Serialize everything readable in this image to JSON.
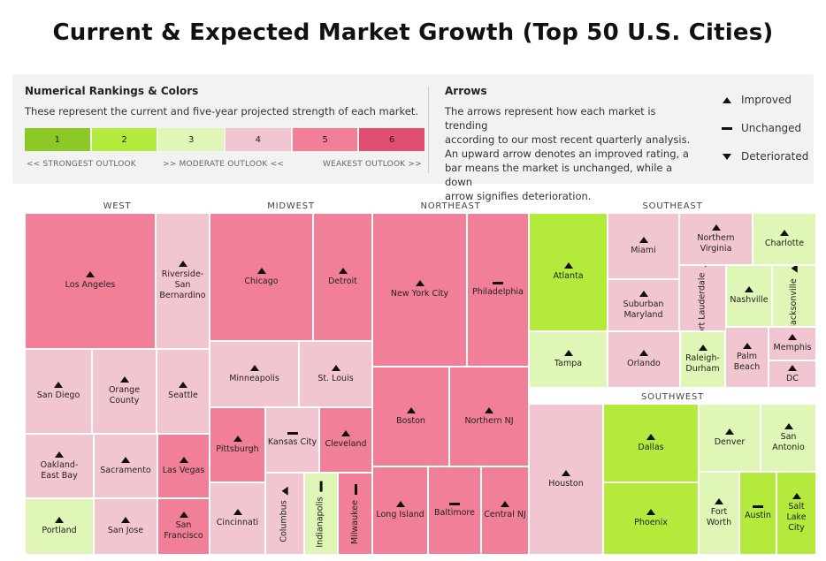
{
  "title": "Current & Expected Market Growth (Top 50 U.S. Cities)",
  "legend": {
    "rank_title": "Numerical Rankings & Colors",
    "rank_desc": "These represent the current and five-year projected strength of each market.",
    "ranks": [
      {
        "label": "1",
        "color": "#8cc826"
      },
      {
        "label": "2",
        "color": "#b3ea3c"
      },
      {
        "label": "3",
        "color": "#dff6b6"
      },
      {
        "label": "4",
        "color": "#f2c6d0"
      },
      {
        "label": "5",
        "color": "#f17f98"
      },
      {
        "label": "6",
        "color": "#e04e70"
      }
    ],
    "scale_strong": "<< STRONGEST OUTLOOK",
    "scale_moderate": ">> MODERATE OUTLOOK <<",
    "scale_weak": "WEAKEST OUTLOOK >>",
    "arrows_title": "Arrows",
    "arrows_desc": [
      "The arrows represent how each market is trending",
      "according to our most recent quarterly analysis.",
      "An upward arrow denotes an improved rating, a",
      "bar means the market is unchanged, while a down",
      "arrow signifies deterioration."
    ],
    "key_improved": "Improved",
    "key_unchanged": "Unchanged",
    "key_deteriorated": "Deteriorated"
  },
  "chart_data": {
    "type": "treemap",
    "regions": [
      "WEST",
      "MIDWEST",
      "NORTHEAST",
      "SOUTHEAST",
      "SOUTHWEST"
    ],
    "markets": [
      {
        "city": "Los Angeles",
        "region": "WEST",
        "rank": 5,
        "trend": "improved"
      },
      {
        "city": "Riverside-San Bernardino",
        "region": "WEST",
        "rank": 4,
        "trend": "improved"
      },
      {
        "city": "San Diego",
        "region": "WEST",
        "rank": 4,
        "trend": "improved"
      },
      {
        "city": "Orange County",
        "region": "WEST",
        "rank": 4,
        "trend": "improved"
      },
      {
        "city": "Seattle",
        "region": "WEST",
        "rank": 4,
        "trend": "improved"
      },
      {
        "city": "Oakland-East Bay",
        "region": "WEST",
        "rank": 4,
        "trend": "improved"
      },
      {
        "city": "Sacramento",
        "region": "WEST",
        "rank": 4,
        "trend": "improved"
      },
      {
        "city": "Las Vegas",
        "region": "WEST",
        "rank": 5,
        "trend": "improved"
      },
      {
        "city": "Portland",
        "region": "WEST",
        "rank": 3,
        "trend": "improved"
      },
      {
        "city": "San Jose",
        "region": "WEST",
        "rank": 4,
        "trend": "improved"
      },
      {
        "city": "San Francisco",
        "region": "WEST",
        "rank": 5,
        "trend": "improved"
      },
      {
        "city": "Chicago",
        "region": "MIDWEST",
        "rank": 5,
        "trend": "improved"
      },
      {
        "city": "Detroit",
        "region": "MIDWEST",
        "rank": 5,
        "trend": "improved"
      },
      {
        "city": "Minneapolis",
        "region": "MIDWEST",
        "rank": 4,
        "trend": "improved"
      },
      {
        "city": "St. Louis",
        "region": "MIDWEST",
        "rank": 4,
        "trend": "improved"
      },
      {
        "city": "Pittsburgh",
        "region": "MIDWEST",
        "rank": 5,
        "trend": "improved"
      },
      {
        "city": "Kansas City",
        "region": "MIDWEST",
        "rank": 4,
        "trend": "unchanged"
      },
      {
        "city": "Cleveland",
        "region": "MIDWEST",
        "rank": 5,
        "trend": "improved"
      },
      {
        "city": "Cincinnati",
        "region": "MIDWEST",
        "rank": 4,
        "trend": "improved"
      },
      {
        "city": "Columbus",
        "region": "MIDWEST",
        "rank": 4,
        "trend": "improved"
      },
      {
        "city": "Indianapolis",
        "region": "MIDWEST",
        "rank": 3,
        "trend": "unchanged"
      },
      {
        "city": "Milwaukee",
        "region": "MIDWEST",
        "rank": 5,
        "trend": "unchanged"
      },
      {
        "city": "New York City",
        "region": "NORTHEAST",
        "rank": 5,
        "trend": "improved"
      },
      {
        "city": "Philadelphia",
        "region": "NORTHEAST",
        "rank": 5,
        "trend": "unchanged"
      },
      {
        "city": "Boston",
        "region": "NORTHEAST",
        "rank": 5,
        "trend": "improved"
      },
      {
        "city": "Northern NJ",
        "region": "NORTHEAST",
        "rank": 5,
        "trend": "improved"
      },
      {
        "city": "Long Island",
        "region": "NORTHEAST",
        "rank": 5,
        "trend": "improved"
      },
      {
        "city": "Baltimore",
        "region": "NORTHEAST",
        "rank": 5,
        "trend": "unchanged"
      },
      {
        "city": "Central NJ",
        "region": "NORTHEAST",
        "rank": 5,
        "trend": "improved"
      },
      {
        "city": "Atlanta",
        "region": "SOUTHEAST",
        "rank": 2,
        "trend": "improved"
      },
      {
        "city": "Miami",
        "region": "SOUTHEAST",
        "rank": 4,
        "trend": "improved"
      },
      {
        "city": "Northern Virginia",
        "region": "SOUTHEAST",
        "rank": 4,
        "trend": "improved"
      },
      {
        "city": "Charlotte",
        "region": "SOUTHEAST",
        "rank": 3,
        "trend": "improved"
      },
      {
        "city": "Suburban Maryland",
        "region": "SOUTHEAST",
        "rank": 4,
        "trend": "improved"
      },
      {
        "city": "Fort Lauderdale",
        "region": "SOUTHEAST",
        "rank": 4,
        "trend": "improved"
      },
      {
        "city": "Nashville",
        "region": "SOUTHEAST",
        "rank": 3,
        "trend": "improved"
      },
      {
        "city": "Jacksonville",
        "region": "SOUTHEAST",
        "rank": 3,
        "trend": "improved"
      },
      {
        "city": "Tampa",
        "region": "SOUTHEAST",
        "rank": 3,
        "trend": "improved"
      },
      {
        "city": "Orlando",
        "region": "SOUTHEAST",
        "rank": 4,
        "trend": "improved"
      },
      {
        "city": "Raleigh-Durham",
        "region": "SOUTHEAST",
        "rank": 3,
        "trend": "improved"
      },
      {
        "city": "Palm Beach",
        "region": "SOUTHEAST",
        "rank": 4,
        "trend": "improved"
      },
      {
        "city": "Memphis",
        "region": "SOUTHEAST",
        "rank": 4,
        "trend": "improved"
      },
      {
        "city": "DC",
        "region": "SOUTHEAST",
        "rank": 4,
        "trend": "improved"
      },
      {
        "city": "Houston",
        "region": "SOUTHWEST",
        "rank": 4,
        "trend": "improved"
      },
      {
        "city": "Dallas",
        "region": "SOUTHWEST",
        "rank": 2,
        "trend": "improved"
      },
      {
        "city": "Phoenix",
        "region": "SOUTHWEST",
        "rank": 2,
        "trend": "improved"
      },
      {
        "city": "Denver",
        "region": "SOUTHWEST",
        "rank": 3,
        "trend": "improved"
      },
      {
        "city": "San Antonio",
        "region": "SOUTHWEST",
        "rank": 3,
        "trend": "improved"
      },
      {
        "city": "Fort Worth",
        "region": "SOUTHWEST",
        "rank": 3,
        "trend": "improved"
      },
      {
        "city": "Austin",
        "region": "SOUTHWEST",
        "rank": 2,
        "trend": "unchanged"
      },
      {
        "city": "Salt Lake City",
        "region": "SOUTHWEST",
        "rank": 2,
        "trend": "improved"
      }
    ]
  }
}
